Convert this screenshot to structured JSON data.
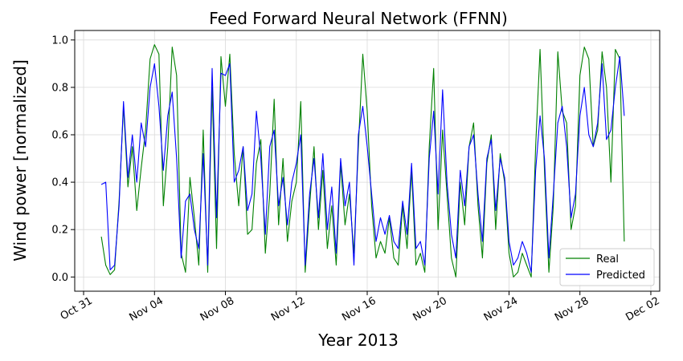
{
  "chart_data": {
    "type": "line",
    "title": "Feed Forward Neural Network (FFNN)",
    "xlabel": "Year 2013",
    "ylabel": "Wind power [normalized]",
    "ylim": [
      -0.06,
      1.04
    ],
    "xlim": [
      "2013-10-30T12:00",
      "2013-12-02T12:00"
    ],
    "yticks": [
      0.0,
      0.2,
      0.4,
      0.6,
      0.8,
      1.0
    ],
    "yticklabels": [
      "0.0",
      "0.2",
      "0.4",
      "0.6",
      "0.8",
      "1.0"
    ],
    "xticks": [
      "2013-10-31",
      "2013-11-04",
      "2013-11-08",
      "2013-11-12",
      "2013-11-16",
      "2013-11-20",
      "2013-11-24",
      "2013-11-28",
      "2013-12-02"
    ],
    "xticklabels": [
      "Oct 31",
      "Nov 04",
      "Nov 08",
      "Nov 12",
      "Nov 16",
      "Nov 20",
      "Nov 24",
      "Nov 28",
      "Dec 02"
    ],
    "grid": true,
    "legend_position": "lower-right",
    "series": [
      {
        "name": "Real",
        "color": "#008000",
        "points": [
          [
            "2013-11-01T00:00",
            0.17
          ],
          [
            "2013-11-01T06:00",
            0.05
          ],
          [
            "2013-11-01T12:00",
            0.01
          ],
          [
            "2013-11-01T18:00",
            0.03
          ],
          [
            "2013-11-02T00:00",
            0.32
          ],
          [
            "2013-11-02T06:00",
            0.72
          ],
          [
            "2013-11-02T12:00",
            0.38
          ],
          [
            "2013-11-02T18:00",
            0.55
          ],
          [
            "2013-11-03T00:00",
            0.28
          ],
          [
            "2013-11-03T06:00",
            0.46
          ],
          [
            "2013-11-03T12:00",
            0.62
          ],
          [
            "2013-11-03T18:00",
            0.92
          ],
          [
            "2013-11-04T00:00",
            0.98
          ],
          [
            "2013-11-04T06:00",
            0.94
          ],
          [
            "2013-11-04T12:00",
            0.3
          ],
          [
            "2013-11-04T18:00",
            0.55
          ],
          [
            "2013-11-05T00:00",
            0.97
          ],
          [
            "2013-11-05T06:00",
            0.85
          ],
          [
            "2013-11-05T12:00",
            0.1
          ],
          [
            "2013-11-05T18:00",
            0.02
          ],
          [
            "2013-11-06T00:00",
            0.42
          ],
          [
            "2013-11-06T06:00",
            0.25
          ],
          [
            "2013-11-06T12:00",
            0.05
          ],
          [
            "2013-11-06T18:00",
            0.62
          ],
          [
            "2013-11-07T00:00",
            0.02
          ],
          [
            "2013-11-07T06:00",
            0.8
          ],
          [
            "2013-11-07T12:00",
            0.12
          ],
          [
            "2013-11-07T18:00",
            0.93
          ],
          [
            "2013-11-08T00:00",
            0.72
          ],
          [
            "2013-11-08T06:00",
            0.94
          ],
          [
            "2013-11-08T12:00",
            0.52
          ],
          [
            "2013-11-08T18:00",
            0.3
          ],
          [
            "2013-11-09T00:00",
            0.55
          ],
          [
            "2013-11-09T06:00",
            0.18
          ],
          [
            "2013-11-09T12:00",
            0.2
          ],
          [
            "2013-11-09T18:00",
            0.48
          ],
          [
            "2013-11-10T00:00",
            0.58
          ],
          [
            "2013-11-10T06:00",
            0.1
          ],
          [
            "2013-11-10T12:00",
            0.35
          ],
          [
            "2013-11-10T18:00",
            0.75
          ],
          [
            "2013-11-11T00:00",
            0.22
          ],
          [
            "2013-11-11T06:00",
            0.5
          ],
          [
            "2013-11-11T12:00",
            0.15
          ],
          [
            "2013-11-11T18:00",
            0.32
          ],
          [
            "2013-11-12T00:00",
            0.4
          ],
          [
            "2013-11-12T06:00",
            0.74
          ],
          [
            "2013-11-12T12:00",
            0.02
          ],
          [
            "2013-11-12T18:00",
            0.3
          ],
          [
            "2013-11-13T00:00",
            0.55
          ],
          [
            "2013-11-13T06:00",
            0.2
          ],
          [
            "2013-11-13T12:00",
            0.45
          ],
          [
            "2013-11-13T18:00",
            0.12
          ],
          [
            "2013-11-14T00:00",
            0.3
          ],
          [
            "2013-11-14T06:00",
            0.05
          ],
          [
            "2013-11-14T12:00",
            0.48
          ],
          [
            "2013-11-14T18:00",
            0.22
          ],
          [
            "2013-11-15T00:00",
            0.35
          ],
          [
            "2013-11-15T06:00",
            0.1
          ],
          [
            "2013-11-15T12:00",
            0.55
          ],
          [
            "2013-11-15T18:00",
            0.94
          ],
          [
            "2013-11-16T00:00",
            0.7
          ],
          [
            "2013-11-16T06:00",
            0.3
          ],
          [
            "2013-11-16T12:00",
            0.08
          ],
          [
            "2013-11-16T18:00",
            0.15
          ],
          [
            "2013-11-17T00:00",
            0.1
          ],
          [
            "2013-11-17T06:00",
            0.25
          ],
          [
            "2013-11-17T12:00",
            0.08
          ],
          [
            "2013-11-17T18:00",
            0.05
          ],
          [
            "2013-11-18T00:00",
            0.3
          ],
          [
            "2013-11-18T06:00",
            0.12
          ],
          [
            "2013-11-18T12:00",
            0.45
          ],
          [
            "2013-11-18T18:00",
            0.05
          ],
          [
            "2013-11-19T00:00",
            0.1
          ],
          [
            "2013-11-19T06:00",
            0.02
          ],
          [
            "2013-11-19T12:00",
            0.55
          ],
          [
            "2013-11-19T18:00",
            0.88
          ],
          [
            "2013-11-20T00:00",
            0.2
          ],
          [
            "2013-11-20T06:00",
            0.62
          ],
          [
            "2013-11-20T12:00",
            0.35
          ],
          [
            "2013-11-20T18:00",
            0.08
          ],
          [
            "2013-11-21T00:00",
            0.0
          ],
          [
            "2013-11-21T06:00",
            0.4
          ],
          [
            "2013-11-21T12:00",
            0.22
          ],
          [
            "2013-11-21T18:00",
            0.55
          ],
          [
            "2013-11-22T00:00",
            0.65
          ],
          [
            "2013-11-22T06:00",
            0.3
          ],
          [
            "2013-11-22T12:00",
            0.08
          ],
          [
            "2013-11-22T18:00",
            0.48
          ],
          [
            "2013-11-23T00:00",
            0.6
          ],
          [
            "2013-11-23T06:00",
            0.2
          ],
          [
            "2013-11-23T12:00",
            0.52
          ],
          [
            "2013-11-23T18:00",
            0.4
          ],
          [
            "2013-11-24T00:00",
            0.1
          ],
          [
            "2013-11-24T06:00",
            0.0
          ],
          [
            "2013-11-24T12:00",
            0.02
          ],
          [
            "2013-11-24T18:00",
            0.1
          ],
          [
            "2013-11-25T00:00",
            0.05
          ],
          [
            "2013-11-25T06:00",
            0.0
          ],
          [
            "2013-11-25T12:00",
            0.55
          ],
          [
            "2013-11-25T18:00",
            0.96
          ],
          [
            "2013-11-26T00:00",
            0.45
          ],
          [
            "2013-11-26T06:00",
            0.02
          ],
          [
            "2013-11-26T12:00",
            0.3
          ],
          [
            "2013-11-26T18:00",
            0.95
          ],
          [
            "2013-11-27T00:00",
            0.7
          ],
          [
            "2013-11-27T06:00",
            0.65
          ],
          [
            "2013-11-27T12:00",
            0.2
          ],
          [
            "2013-11-27T18:00",
            0.3
          ],
          [
            "2013-11-28T00:00",
            0.85
          ],
          [
            "2013-11-28T06:00",
            0.97
          ],
          [
            "2013-11-28T12:00",
            0.92
          ],
          [
            "2013-11-28T18:00",
            0.55
          ],
          [
            "2013-11-29T00:00",
            0.62
          ],
          [
            "2013-11-29T06:00",
            0.95
          ],
          [
            "2013-11-29T12:00",
            0.8
          ],
          [
            "2013-11-29T18:00",
            0.4
          ],
          [
            "2013-11-30T00:00",
            0.96
          ],
          [
            "2013-11-30T06:00",
            0.92
          ],
          [
            "2013-11-30T12:00",
            0.15
          ]
        ]
      },
      {
        "name": "Predicted",
        "color": "#0000ff",
        "points": [
          [
            "2013-11-01T00:00",
            0.39
          ],
          [
            "2013-11-01T06:00",
            0.4
          ],
          [
            "2013-11-01T12:00",
            0.03
          ],
          [
            "2013-11-01T18:00",
            0.05
          ],
          [
            "2013-11-02T00:00",
            0.3
          ],
          [
            "2013-11-02T06:00",
            0.74
          ],
          [
            "2013-11-02T12:00",
            0.42
          ],
          [
            "2013-11-02T18:00",
            0.6
          ],
          [
            "2013-11-03T00:00",
            0.4
          ],
          [
            "2013-11-03T06:00",
            0.65
          ],
          [
            "2013-11-03T12:00",
            0.55
          ],
          [
            "2013-11-03T18:00",
            0.8
          ],
          [
            "2013-11-04T00:00",
            0.9
          ],
          [
            "2013-11-04T06:00",
            0.72
          ],
          [
            "2013-11-04T12:00",
            0.45
          ],
          [
            "2013-11-04T18:00",
            0.68
          ],
          [
            "2013-11-05T00:00",
            0.78
          ],
          [
            "2013-11-05T06:00",
            0.5
          ],
          [
            "2013-11-05T12:00",
            0.08
          ],
          [
            "2013-11-05T18:00",
            0.32
          ],
          [
            "2013-11-06T00:00",
            0.35
          ],
          [
            "2013-11-06T06:00",
            0.2
          ],
          [
            "2013-11-06T12:00",
            0.12
          ],
          [
            "2013-11-06T18:00",
            0.52
          ],
          [
            "2013-11-07T00:00",
            0.05
          ],
          [
            "2013-11-07T06:00",
            0.88
          ],
          [
            "2013-11-07T12:00",
            0.25
          ],
          [
            "2013-11-07T18:00",
            0.86
          ],
          [
            "2013-11-08T00:00",
            0.85
          ],
          [
            "2013-11-08T06:00",
            0.9
          ],
          [
            "2013-11-08T12:00",
            0.4
          ],
          [
            "2013-11-08T18:00",
            0.45
          ],
          [
            "2013-11-09T00:00",
            0.55
          ],
          [
            "2013-11-09T06:00",
            0.28
          ],
          [
            "2013-11-09T12:00",
            0.35
          ],
          [
            "2013-11-09T18:00",
            0.7
          ],
          [
            "2013-11-10T00:00",
            0.5
          ],
          [
            "2013-11-10T06:00",
            0.18
          ],
          [
            "2013-11-10T12:00",
            0.55
          ],
          [
            "2013-11-10T18:00",
            0.62
          ],
          [
            "2013-11-11T00:00",
            0.3
          ],
          [
            "2013-11-11T06:00",
            0.42
          ],
          [
            "2013-11-11T12:00",
            0.22
          ],
          [
            "2013-11-11T18:00",
            0.4
          ],
          [
            "2013-11-12T00:00",
            0.48
          ],
          [
            "2013-11-12T06:00",
            0.6
          ],
          [
            "2013-11-12T12:00",
            0.05
          ],
          [
            "2013-11-12T18:00",
            0.35
          ],
          [
            "2013-11-13T00:00",
            0.5
          ],
          [
            "2013-11-13T06:00",
            0.25
          ],
          [
            "2013-11-13T12:00",
            0.52
          ],
          [
            "2013-11-13T18:00",
            0.2
          ],
          [
            "2013-11-14T00:00",
            0.38
          ],
          [
            "2013-11-14T06:00",
            0.1
          ],
          [
            "2013-11-14T12:00",
            0.5
          ],
          [
            "2013-11-14T18:00",
            0.3
          ],
          [
            "2013-11-15T00:00",
            0.4
          ],
          [
            "2013-11-15T06:00",
            0.05
          ],
          [
            "2013-11-15T12:00",
            0.6
          ],
          [
            "2013-11-15T18:00",
            0.72
          ],
          [
            "2013-11-16T00:00",
            0.55
          ],
          [
            "2013-11-16T06:00",
            0.35
          ],
          [
            "2013-11-16T12:00",
            0.15
          ],
          [
            "2013-11-16T18:00",
            0.25
          ],
          [
            "2013-11-17T00:00",
            0.18
          ],
          [
            "2013-11-17T06:00",
            0.26
          ],
          [
            "2013-11-17T12:00",
            0.15
          ],
          [
            "2013-11-17T18:00",
            0.12
          ],
          [
            "2013-11-18T00:00",
            0.32
          ],
          [
            "2013-11-18T06:00",
            0.18
          ],
          [
            "2013-11-18T12:00",
            0.48
          ],
          [
            "2013-11-18T18:00",
            0.12
          ],
          [
            "2013-11-19T00:00",
            0.15
          ],
          [
            "2013-11-19T06:00",
            0.05
          ],
          [
            "2013-11-19T12:00",
            0.5
          ],
          [
            "2013-11-19T18:00",
            0.7
          ],
          [
            "2013-11-20T00:00",
            0.35
          ],
          [
            "2013-11-20T06:00",
            0.79
          ],
          [
            "2013-11-20T12:00",
            0.4
          ],
          [
            "2013-11-20T18:00",
            0.18
          ],
          [
            "2013-11-21T00:00",
            0.08
          ],
          [
            "2013-11-21T06:00",
            0.45
          ],
          [
            "2013-11-21T12:00",
            0.3
          ],
          [
            "2013-11-21T18:00",
            0.55
          ],
          [
            "2013-11-22T00:00",
            0.6
          ],
          [
            "2013-11-22T06:00",
            0.35
          ],
          [
            "2013-11-22T12:00",
            0.15
          ],
          [
            "2013-11-22T18:00",
            0.5
          ],
          [
            "2013-11-23T00:00",
            0.58
          ],
          [
            "2013-11-23T06:00",
            0.28
          ],
          [
            "2013-11-23T12:00",
            0.5
          ],
          [
            "2013-11-23T18:00",
            0.42
          ],
          [
            "2013-11-24T00:00",
            0.15
          ],
          [
            "2013-11-24T06:00",
            0.05
          ],
          [
            "2013-11-24T12:00",
            0.08
          ],
          [
            "2013-11-24T18:00",
            0.15
          ],
          [
            "2013-11-25T00:00",
            0.1
          ],
          [
            "2013-11-25T06:00",
            0.02
          ],
          [
            "2013-11-25T12:00",
            0.45
          ],
          [
            "2013-11-25T18:00",
            0.68
          ],
          [
            "2013-11-26T00:00",
            0.5
          ],
          [
            "2013-11-26T06:00",
            0.08
          ],
          [
            "2013-11-26T12:00",
            0.35
          ],
          [
            "2013-11-26T18:00",
            0.65
          ],
          [
            "2013-11-27T00:00",
            0.72
          ],
          [
            "2013-11-27T06:00",
            0.55
          ],
          [
            "2013-11-27T12:00",
            0.25
          ],
          [
            "2013-11-27T18:00",
            0.35
          ],
          [
            "2013-11-28T00:00",
            0.68
          ],
          [
            "2013-11-28T06:00",
            0.8
          ],
          [
            "2013-11-28T12:00",
            0.6
          ],
          [
            "2013-11-28T18:00",
            0.55
          ],
          [
            "2013-11-29T00:00",
            0.65
          ],
          [
            "2013-11-29T06:00",
            0.9
          ],
          [
            "2013-11-29T12:00",
            0.58
          ],
          [
            "2013-11-29T18:00",
            0.62
          ],
          [
            "2013-11-30T00:00",
            0.8
          ],
          [
            "2013-11-30T06:00",
            0.93
          ],
          [
            "2013-11-30T12:00",
            0.68
          ]
        ]
      }
    ]
  }
}
